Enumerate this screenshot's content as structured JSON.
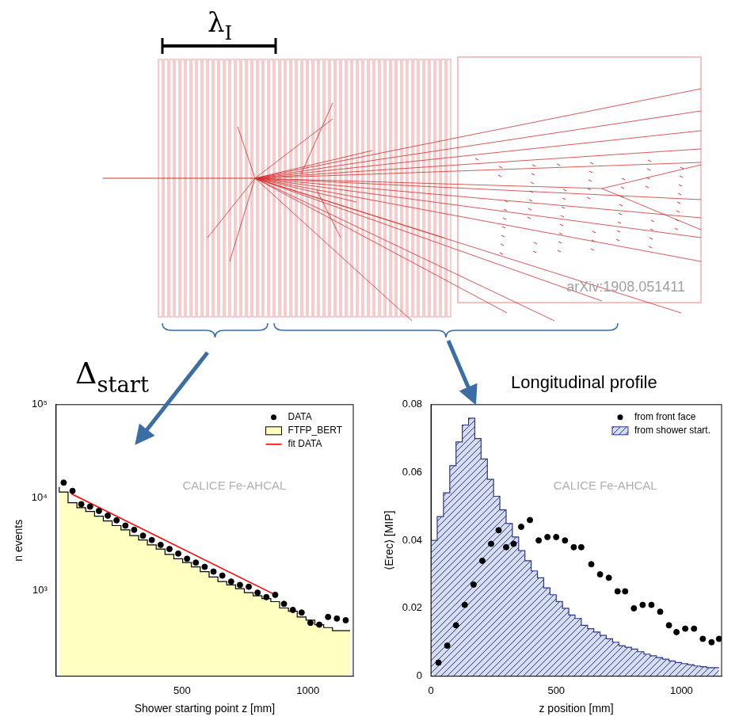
{
  "diagram": {
    "lambda_label": {
      "symbol": "λ",
      "subscript": "I"
    },
    "delta_label": {
      "symbol": "Δ",
      "subscript": "start"
    },
    "profile_label": "Longitudinal profile",
    "source": "arXiv:1908.051411"
  },
  "chart_data": [
    {
      "type": "scatter",
      "log": "y",
      "grid": false,
      "legend": "upper right",
      "xlabel": "Shower starting point z [mm]",
      "ylabel": "n events",
      "annotation": "CALICE Fe-AHCAL",
      "xlim": [
        0,
        1180
      ],
      "xticks": [
        500,
        1000
      ],
      "ylim": [
        120,
        100000
      ],
      "yticks": [
        {
          "value": 1000,
          "label": "10³"
        },
        {
          "value": 10000,
          "label": "10⁴"
        },
        {
          "value": 100000,
          "label": "10⁵"
        }
      ],
      "series": [
        {
          "name": "DATA",
          "type": "scatter",
          "marker": "circle",
          "color": "#000000",
          "x": [
            30,
            65,
            100,
            135,
            170,
            205,
            240,
            275,
            310,
            345,
            380,
            415,
            450,
            485,
            520,
            555,
            590,
            625,
            660,
            695,
            730,
            765,
            800,
            835,
            870,
            905,
            940,
            975,
            1010,
            1045,
            1080,
            1115,
            1150
          ],
          "values": [
            14500,
            11800,
            8500,
            8000,
            7200,
            6400,
            5700,
            5000,
            4500,
            3900,
            3500,
            3100,
            2800,
            2500,
            2200,
            2000,
            1800,
            1600,
            1450,
            1250,
            1150,
            1100,
            950,
            850,
            900,
            720,
            620,
            580,
            450,
            430,
            520,
            500,
            480
          ]
        },
        {
          "name": "FTFP_BERT",
          "type": "histogram",
          "color": "#ffffc0",
          "bins": [
            12.5,
            47.5,
            82.5,
            117.5,
            152.5,
            187.5,
            222.5,
            257.5,
            292.5,
            327.5,
            362.5,
            397.5,
            432.5,
            467.5,
            502.5,
            537.5,
            572.5,
            607.5,
            642.5,
            677.5,
            712.5,
            747.5,
            782.5,
            817.5,
            852.5,
            887.5,
            922.5,
            957.5,
            992.5,
            1027.5,
            1062.5,
            1097.5,
            1132.5,
            1167.5
          ],
          "values": [
            13000,
            11500,
            8800,
            7800,
            7100,
            6300,
            5600,
            5000,
            4500,
            3900,
            3500,
            3100,
            2800,
            2450,
            2200,
            2000,
            1800,
            1600,
            1400,
            1250,
            1150,
            1050,
            950,
            880,
            820,
            760,
            650,
            600,
            520,
            480,
            430,
            400,
            370
          ]
        },
        {
          "name": "fit DATA",
          "type": "line",
          "line_style": "solid",
          "color": "#ff0000",
          "x": [
            60,
            870
          ],
          "values": [
            11000,
            900
          ]
        }
      ]
    },
    {
      "type": "histogram",
      "grid": false,
      "legend": "upper right",
      "xlabel": "z position [mm]",
      "ylabel": "⟨Erec⟩ [MIP]",
      "annotation": "CALICE Fe-AHCAL",
      "xlim": [
        0,
        1160
      ],
      "xticks": [
        0,
        500,
        1000
      ],
      "ylim": [
        0,
        0.08
      ],
      "yticks": [
        0,
        0.02,
        0.04,
        0.06,
        0.08
      ],
      "series": [
        {
          "name": "from front face",
          "type": "scatter",
          "marker": "circle",
          "color": "#000000",
          "x": [
            30,
            65,
            100,
            135,
            170,
            205,
            240,
            270,
            300,
            330,
            360,
            395,
            430,
            465,
            500,
            535,
            570,
            600,
            640,
            675,
            710,
            745,
            775,
            810,
            845,
            880,
            915,
            950,
            980,
            1015,
            1050,
            1085,
            1120,
            1150
          ],
          "values": [
            0.004,
            0.009,
            0.015,
            0.021,
            0.027,
            0.034,
            0.039,
            0.043,
            0.038,
            0.039,
            0.044,
            0.046,
            0.04,
            0.041,
            0.041,
            0.04,
            0.038,
            0.038,
            0.033,
            0.03,
            0.029,
            0.025,
            0.025,
            0.02,
            0.021,
            0.021,
            0.019,
            0.015,
            0.013,
            0.014,
            0.014,
            0.011,
            0.01,
            0.011
          ]
        },
        {
          "name": "from shower start.",
          "type": "histogram",
          "color": "#2a3590",
          "bins": [
            0,
            25,
            50,
            75,
            100,
            125,
            150,
            175,
            200,
            225,
            250,
            275,
            300,
            325,
            350,
            375,
            400,
            425,
            450,
            475,
            500,
            525,
            550,
            575,
            600,
            625,
            650,
            675,
            700,
            725,
            750,
            775,
            800,
            825,
            850,
            875,
            900,
            925,
            950,
            975,
            1000,
            1025,
            1050,
            1075,
            1100,
            1125,
            1150
          ],
          "values": [
            0.032,
            0.04,
            0.047,
            0.054,
            0.062,
            0.069,
            0.074,
            0.076,
            0.07,
            0.064,
            0.058,
            0.053,
            0.049,
            0.045,
            0.041,
            0.037,
            0.034,
            0.031,
            0.029,
            0.026,
            0.024,
            0.022,
            0.02,
            0.018,
            0.017,
            0.015,
            0.014,
            0.013,
            0.012,
            0.011,
            0.01,
            0.009,
            0.0085,
            0.008,
            0.0072,
            0.0065,
            0.006,
            0.0055,
            0.005,
            0.0045,
            0.004,
            0.0037,
            0.0034,
            0.003,
            0.0028,
            0.0025
          ]
        }
      ]
    }
  ]
}
